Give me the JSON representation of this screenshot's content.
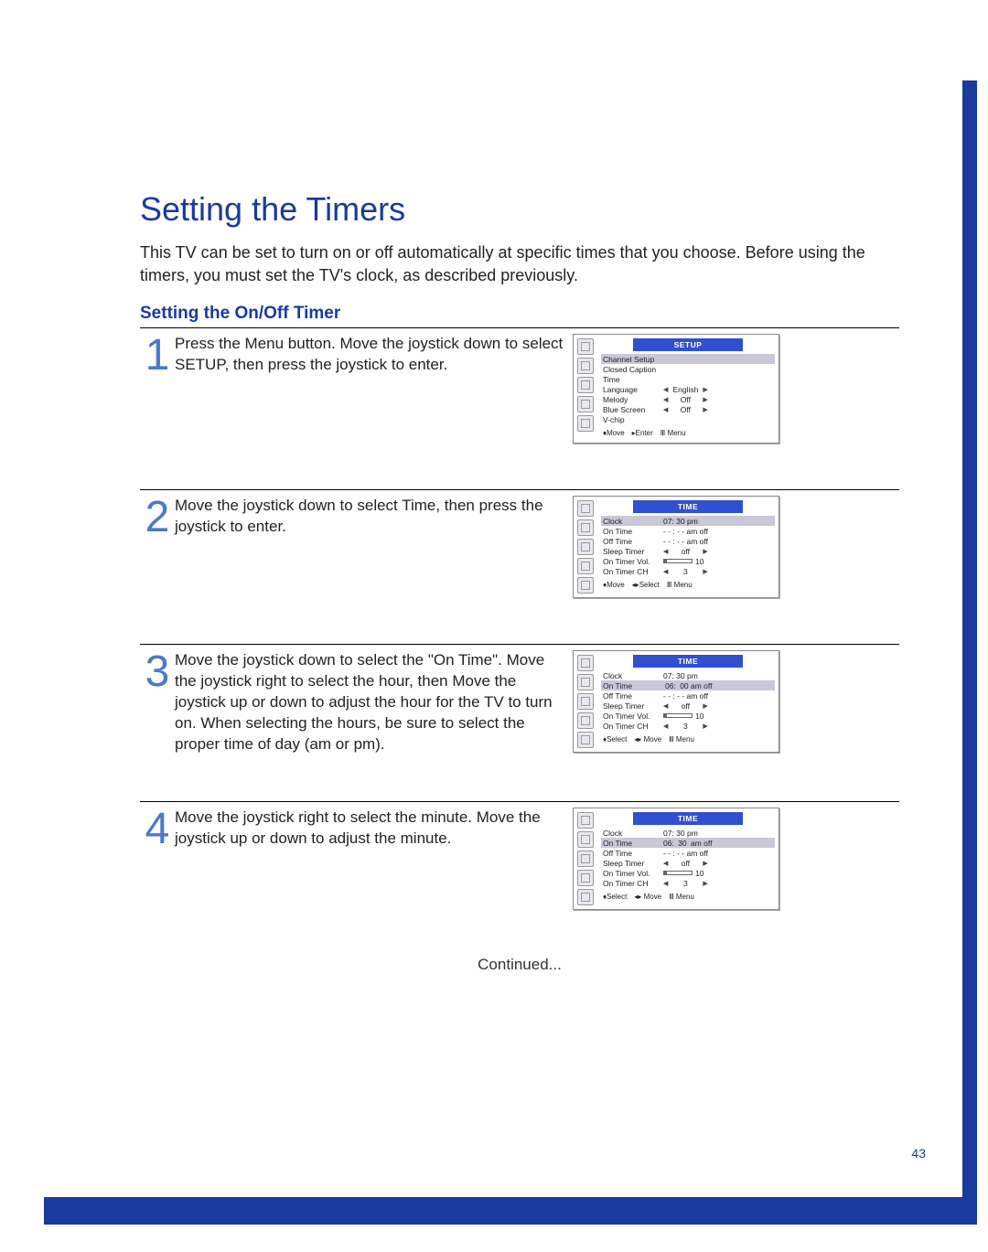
{
  "colors": {
    "primary": "#1a3a9e",
    "step_number": "#4a7ac8",
    "menu_title_bg": "#3050d0",
    "highlight_bg": "#c8c8d8",
    "border_rule": "#000000"
  },
  "typography": {
    "heading_fontsize": 36,
    "subheading_fontsize": 19,
    "body_fontsize": 17,
    "step_number_fontsize": 48,
    "menu_fontsize": 8.5
  },
  "page": {
    "heading": "Setting the Timers",
    "intro": "This TV can be set to turn on or off automatically at specific times that you choose. Before using the timers, you must set the TV's clock, as described previously.",
    "subheading": "Setting the On/Off Timer",
    "continued": "Continued...",
    "page_number": "43"
  },
  "steps": [
    {
      "number": "1",
      "text": "Press the Menu button. Move the joystick down to select SETUP, then press the joystick to enter.",
      "screen": {
        "title": "SETUP",
        "rows": [
          {
            "label": "Channel Setup",
            "highlight": true
          },
          {
            "label": "Closed Caption"
          },
          {
            "label": "Time"
          },
          {
            "label": "Language",
            "value": "English",
            "arrows": true
          },
          {
            "label": "Melody",
            "value": "Off",
            "arrows": true
          },
          {
            "label": "Blue Screen",
            "value": "Off",
            "arrows": true
          },
          {
            "label": "V-chip"
          }
        ],
        "footer": [
          "♦Move",
          "▸Enter",
          "Ⅲ Menu"
        ]
      }
    },
    {
      "number": "2",
      "text": "Move the joystick down to select Time, then press the joystick to enter.",
      "screen": {
        "title": "TIME",
        "rows": [
          {
            "label": "Clock",
            "value_plain": "07: 30 pm",
            "highlight": true
          },
          {
            "label": "On Time",
            "value_plain": "- - : - - am off"
          },
          {
            "label": "Off Time",
            "value_plain": "- - : - - am off"
          },
          {
            "label": "Sleep Timer",
            "value": "off",
            "arrows": true
          },
          {
            "label": "On Timer Vol.",
            "volbar": true,
            "value_plain": "10"
          },
          {
            "label": "On Timer CH",
            "value": "3",
            "arrows": true
          }
        ],
        "footer": [
          "♦Move",
          "◂▸Select",
          "Ⅲ Menu"
        ]
      }
    },
    {
      "number": "3",
      "text": "Move the joystick down to select the \"On Time\". Move the joystick right to select the hour, then Move the joystick up or down to adjust the hour for the TV to turn on. When selecting the hours, be sure to select the proper time of day (am or pm).",
      "screen": {
        "title": "TIME",
        "rows": [
          {
            "label": "Clock",
            "value_plain": "07: 30 pm"
          },
          {
            "label": "On Time",
            "on_time_hour_hl": "06:",
            "on_time_rest": " 00 am off",
            "highlight": true
          },
          {
            "label": "Off Time",
            "value_plain": "- - : - - am off"
          },
          {
            "label": "Sleep Timer",
            "value": "off",
            "arrows": true
          },
          {
            "label": "On Timer Vol.",
            "volbar": true,
            "value_plain": "10"
          },
          {
            "label": "On Timer CH",
            "value": "3",
            "arrows": true
          }
        ],
        "footer": [
          "♦Select",
          "◂▸ Move",
          "Ⅲ Menu"
        ]
      }
    },
    {
      "number": "4",
      "text": "Move the joystick right to select the minute. Move the joystick up or down to adjust the minute.",
      "screen": {
        "title": "TIME",
        "rows": [
          {
            "label": "Clock",
            "value_plain": "07: 30 pm"
          },
          {
            "label": "On Time",
            "on_time_pre": "06: ",
            "on_time_min_hl": "30",
            "on_time_rest2": " am off",
            "highlight": true
          },
          {
            "label": "Off Time",
            "value_plain": "- - : - - am off"
          },
          {
            "label": "Sleep Timer",
            "value": "off",
            "arrows": true
          },
          {
            "label": "On Timer Vol.",
            "volbar": true,
            "value_plain": "10"
          },
          {
            "label": "On Timer CH",
            "value": "3",
            "arrows": true
          }
        ],
        "footer": [
          "♦Select",
          "◂▸ Move",
          "Ⅲ Menu"
        ]
      }
    }
  ]
}
